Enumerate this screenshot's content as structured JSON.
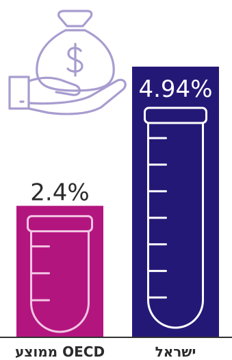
{
  "chart_data": {
    "type": "bar",
    "categories": [
      "ממוצע OECD",
      "ישראל"
    ],
    "values": [
      2.4,
      4.94
    ],
    "value_labels": [
      "2.4%",
      "4.94%"
    ],
    "colors": {
      "bars": [
        "#b3157f",
        "#241877"
      ],
      "tube_on_magenta": "#f2c6e3",
      "tube_on_navy": "#ffffff",
      "icon_stroke": "#a89ccf",
      "label_dark": "#2b2b2b",
      "axis": "#333333"
    },
    "icons": [
      "money-bag-hand-icon",
      "test-tube-icon"
    ],
    "ylim": [
      0,
      4.94
    ],
    "grid": false,
    "legend": "none"
  }
}
